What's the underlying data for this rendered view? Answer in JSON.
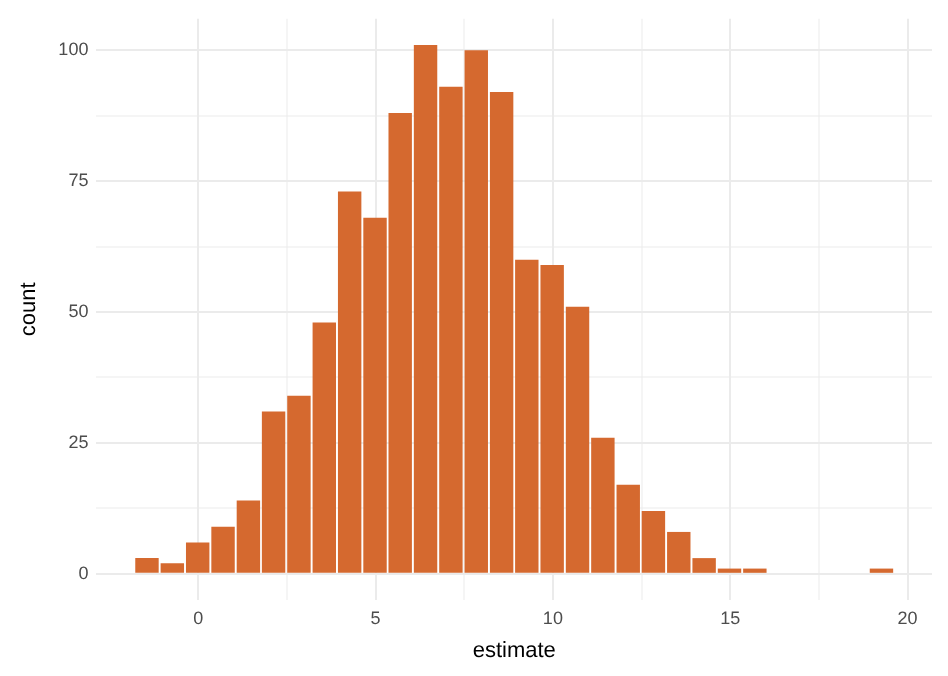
{
  "chart_data": {
    "type": "histogram",
    "xlabel": "estimate",
    "ylabel": "count",
    "color": "#d5692f",
    "bins": [
      -1.8,
      -1.09,
      -0.37,
      0.34,
      1.06,
      1.77,
      2.48,
      3.2,
      3.91,
      4.63,
      5.34,
      6.05,
      6.77,
      7.48,
      8.2,
      8.91,
      9.62,
      10.34,
      11.05,
      11.77,
      12.48,
      13.19,
      13.91,
      14.62,
      15.34,
      16.05,
      16.76,
      17.48,
      18.19,
      18.91,
      19.62
    ],
    "values": [
      3,
      2,
      6,
      9,
      14,
      31,
      34,
      48,
      73,
      68,
      88,
      101,
      93,
      100,
      92,
      60,
      59,
      51,
      26,
      17,
      12,
      8,
      3,
      1,
      1,
      0,
      0,
      0,
      0,
      1
    ],
    "xlim": [
      -2.87,
      20.69
    ],
    "ylim": [
      -5,
      106
    ],
    "xticks": [
      0,
      {
        "value": 2.5,
        "label": null
      },
      5,
      {
        "value": 7.5,
        "label": null
      },
      10,
      {
        "value": 12.5,
        "label": null
      },
      15,
      {
        "value": 17.5,
        "label": null
      },
      20
    ],
    "yticks": [
      0,
      {
        "value": 12.5,
        "label": null
      },
      25,
      {
        "value": 37.5,
        "label": null
      },
      50,
      {
        "value": 62.5,
        "label": null
      },
      75,
      {
        "value": 87.5,
        "label": null
      },
      100
    ],
    "grid": true,
    "legend": false
  }
}
